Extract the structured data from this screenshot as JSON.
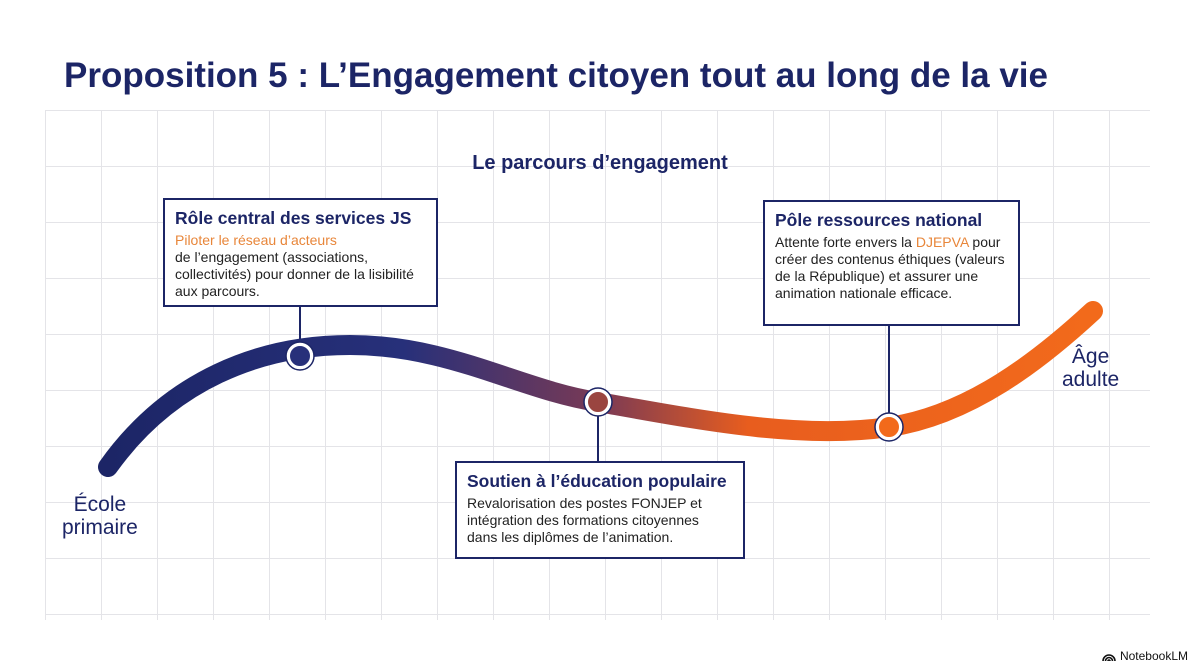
{
  "title": "Proposition 5 : L’Engagement citoyen tout au long de la vie",
  "subtitle": "Le parcours d’engagement",
  "start_label": {
    "line1": "École",
    "line2": "primaire"
  },
  "end_label": {
    "line1": "Âge",
    "line2": "adulte"
  },
  "colors": {
    "navy": "#1c2566",
    "orange": "#f26a1b",
    "highlight": "#e8863a"
  },
  "milestones": [
    {
      "title": "Rôle central des services JS",
      "highlight": "Piloter le réseau d’acteurs",
      "text": "de l’engagement (associations, collectivités) pour donner de la lisibilité aux parcours."
    },
    {
      "title": "Soutien à l’éducation populaire",
      "text": "Revalorisation des postes FONJEP et intégration des formations citoyennes dans les diplômes de l’animation."
    },
    {
      "title": "Pôle ressources national",
      "text_before": "Attente forte envers la ",
      "highlight": "DJEPVA",
      "text": "pour créer des contenus éthiques (valeurs de la République) et assurer une animation nationale efficace."
    }
  ],
  "brand": "NotebookLM"
}
